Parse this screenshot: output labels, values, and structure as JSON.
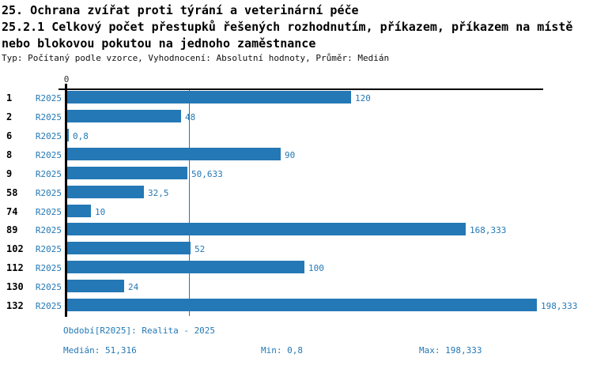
{
  "header": {
    "title_line1": "25. Ochrana zvířat proti týrání a veterinární péče",
    "title_line2": "25.2.1 Celkový počet přestupků řešených rozhodnutím, příkazem, příkazem na místě",
    "title_line3": "nebo blokovou pokutou na jednoho zaměstnance",
    "meta": "Typ: Počítaný podle vzorce, Vyhodnocení: Absolutní hodnoty, Průměr: Medián"
  },
  "colors": {
    "bar": "#2478b5",
    "accent_text": "#2478b5",
    "axis": "#000000"
  },
  "chart_data": {
    "type": "bar",
    "orientation": "horizontal",
    "title": "",
    "xlabel": "",
    "ylabel": "",
    "categories": [
      "1",
      "2",
      "6",
      "8",
      "9",
      "58",
      "74",
      "89",
      "102",
      "112",
      "130",
      "132"
    ],
    "series": [
      {
        "name": "R2025",
        "values": [
          120,
          48,
          0.8,
          90,
          50.633,
          32.5,
          10,
          168.333,
          52,
          100,
          24,
          198.333
        ]
      }
    ],
    "value_labels": [
      "120",
      "48",
      "0,8",
      "90",
      "50,633",
      "32,5",
      "10",
      "168,333",
      "52",
      "100",
      "24",
      "198,333"
    ],
    "row_series_label": "R2025",
    "xlim": [
      0,
      201
    ],
    "x_tick_labels": [
      "0"
    ],
    "median": 51.316,
    "grid": false,
    "legend": "none"
  },
  "footer": {
    "period": "Období[R2025]: Realita - 2025",
    "median": "Medián: 51,316",
    "min": "Min: 0,8",
    "max": "Max: 198,333"
  }
}
